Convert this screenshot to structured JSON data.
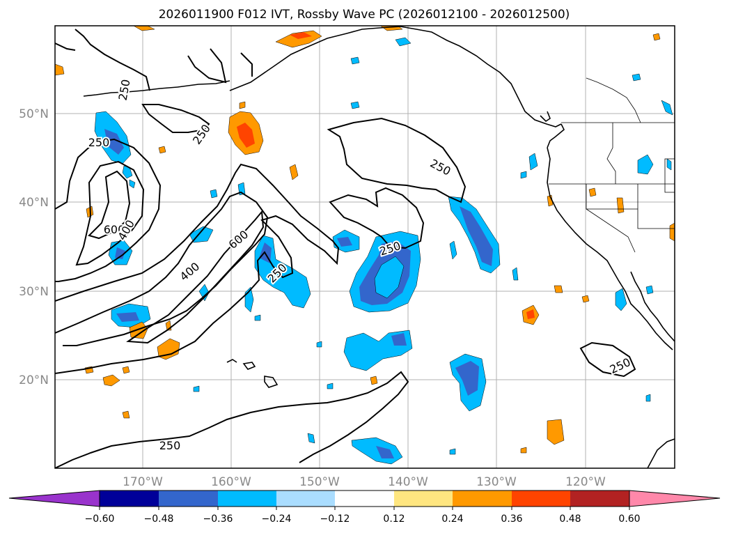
{
  "title": "2026011900 F012 IVT, Rossby Wave PC (2026012100 - 2026012500)",
  "axes": {
    "lat_labels": [
      "50°N",
      "40°N",
      "30°N",
      "20°N"
    ],
    "lon_labels": [
      "170°W",
      "160°W",
      "150°W",
      "140°W",
      "130°W",
      "120°W"
    ],
    "tick_label_color": "#888888"
  },
  "contour_labels": [
    "250",
    "250",
    "250",
    "250",
    "600",
    "400",
    "400",
    "600",
    "250",
    "250",
    "250",
    "250"
  ],
  "colorbar": {
    "colors": [
      "#9933cc",
      "#000099",
      "#3366cc",
      "#00bbff",
      "#aaddff",
      "#ffffff",
      "#ffe680",
      "#ff9900",
      "#ff4400",
      "#b22222",
      "#ff88aa"
    ],
    "tick_labels": [
      "−0.60",
      "−0.48",
      "−0.36",
      "−0.24",
      "−0.12",
      "0.12",
      "0.24",
      "0.36",
      "0.48",
      "0.60"
    ]
  }
}
